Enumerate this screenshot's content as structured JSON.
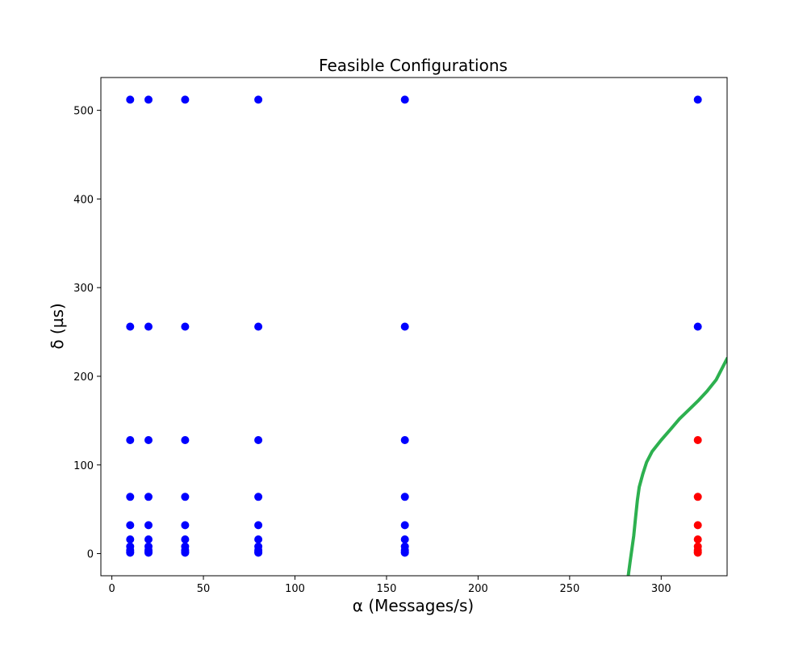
{
  "chart_data": {
    "type": "scatter",
    "title": "Feasible Configurations",
    "xlabel": "α (Messages/s)",
    "ylabel": "δ (µs)",
    "xlim": [
      -6,
      336
    ],
    "ylim": [
      -25,
      537
    ],
    "xticks": [
      0,
      50,
      100,
      150,
      200,
      250,
      300
    ],
    "yticks": [
      0,
      100,
      200,
      300,
      400,
      500
    ],
    "grid": false,
    "legend": "none",
    "series": [
      {
        "color": "#0000ff",
        "points": [
          [
            10,
            1
          ],
          [
            10,
            2
          ],
          [
            10,
            4
          ],
          [
            10,
            8
          ],
          [
            10,
            16
          ],
          [
            10,
            32
          ],
          [
            10,
            64
          ],
          [
            10,
            128
          ],
          [
            10,
            256
          ],
          [
            10,
            512
          ],
          [
            20,
            1
          ],
          [
            20,
            2
          ],
          [
            20,
            4
          ],
          [
            20,
            8
          ],
          [
            20,
            16
          ],
          [
            20,
            32
          ],
          [
            20,
            64
          ],
          [
            20,
            128
          ],
          [
            20,
            256
          ],
          [
            20,
            512
          ],
          [
            40,
            1
          ],
          [
            40,
            2
          ],
          [
            40,
            4
          ],
          [
            40,
            8
          ],
          [
            40,
            16
          ],
          [
            40,
            32
          ],
          [
            40,
            64
          ],
          [
            40,
            128
          ],
          [
            40,
            256
          ],
          [
            40,
            512
          ],
          [
            80,
            1
          ],
          [
            80,
            2
          ],
          [
            80,
            4
          ],
          [
            80,
            8
          ],
          [
            80,
            16
          ],
          [
            80,
            32
          ],
          [
            80,
            64
          ],
          [
            80,
            128
          ],
          [
            80,
            256
          ],
          [
            80,
            512
          ],
          [
            160,
            1
          ],
          [
            160,
            2
          ],
          [
            160,
            4
          ],
          [
            160,
            8
          ],
          [
            160,
            16
          ],
          [
            160,
            32
          ],
          [
            160,
            64
          ],
          [
            160,
            128
          ],
          [
            160,
            256
          ],
          [
            160,
            512
          ],
          [
            320,
            256
          ],
          [
            320,
            512
          ]
        ]
      },
      {
        "color": "#ff0000",
        "points": [
          [
            320,
            1
          ],
          [
            320,
            2
          ],
          [
            320,
            4
          ],
          [
            320,
            8
          ],
          [
            320,
            16
          ],
          [
            320,
            32
          ],
          [
            320,
            64
          ],
          [
            320,
            128
          ]
        ]
      }
    ],
    "curve": {
      "color": "#2db04f",
      "points": [
        [
          282,
          -25
        ],
        [
          283,
          -10
        ],
        [
          284,
          5
        ],
        [
          285,
          20
        ],
        [
          286,
          40
        ],
        [
          287,
          60
        ],
        [
          288,
          75
        ],
        [
          290,
          90
        ],
        [
          292,
          103
        ],
        [
          295,
          115
        ],
        [
          300,
          128
        ],
        [
          305,
          140
        ],
        [
          310,
          152
        ],
        [
          315,
          162
        ],
        [
          320,
          172
        ],
        [
          325,
          183
        ],
        [
          330,
          196
        ],
        [
          336,
          220
        ]
      ]
    }
  }
}
